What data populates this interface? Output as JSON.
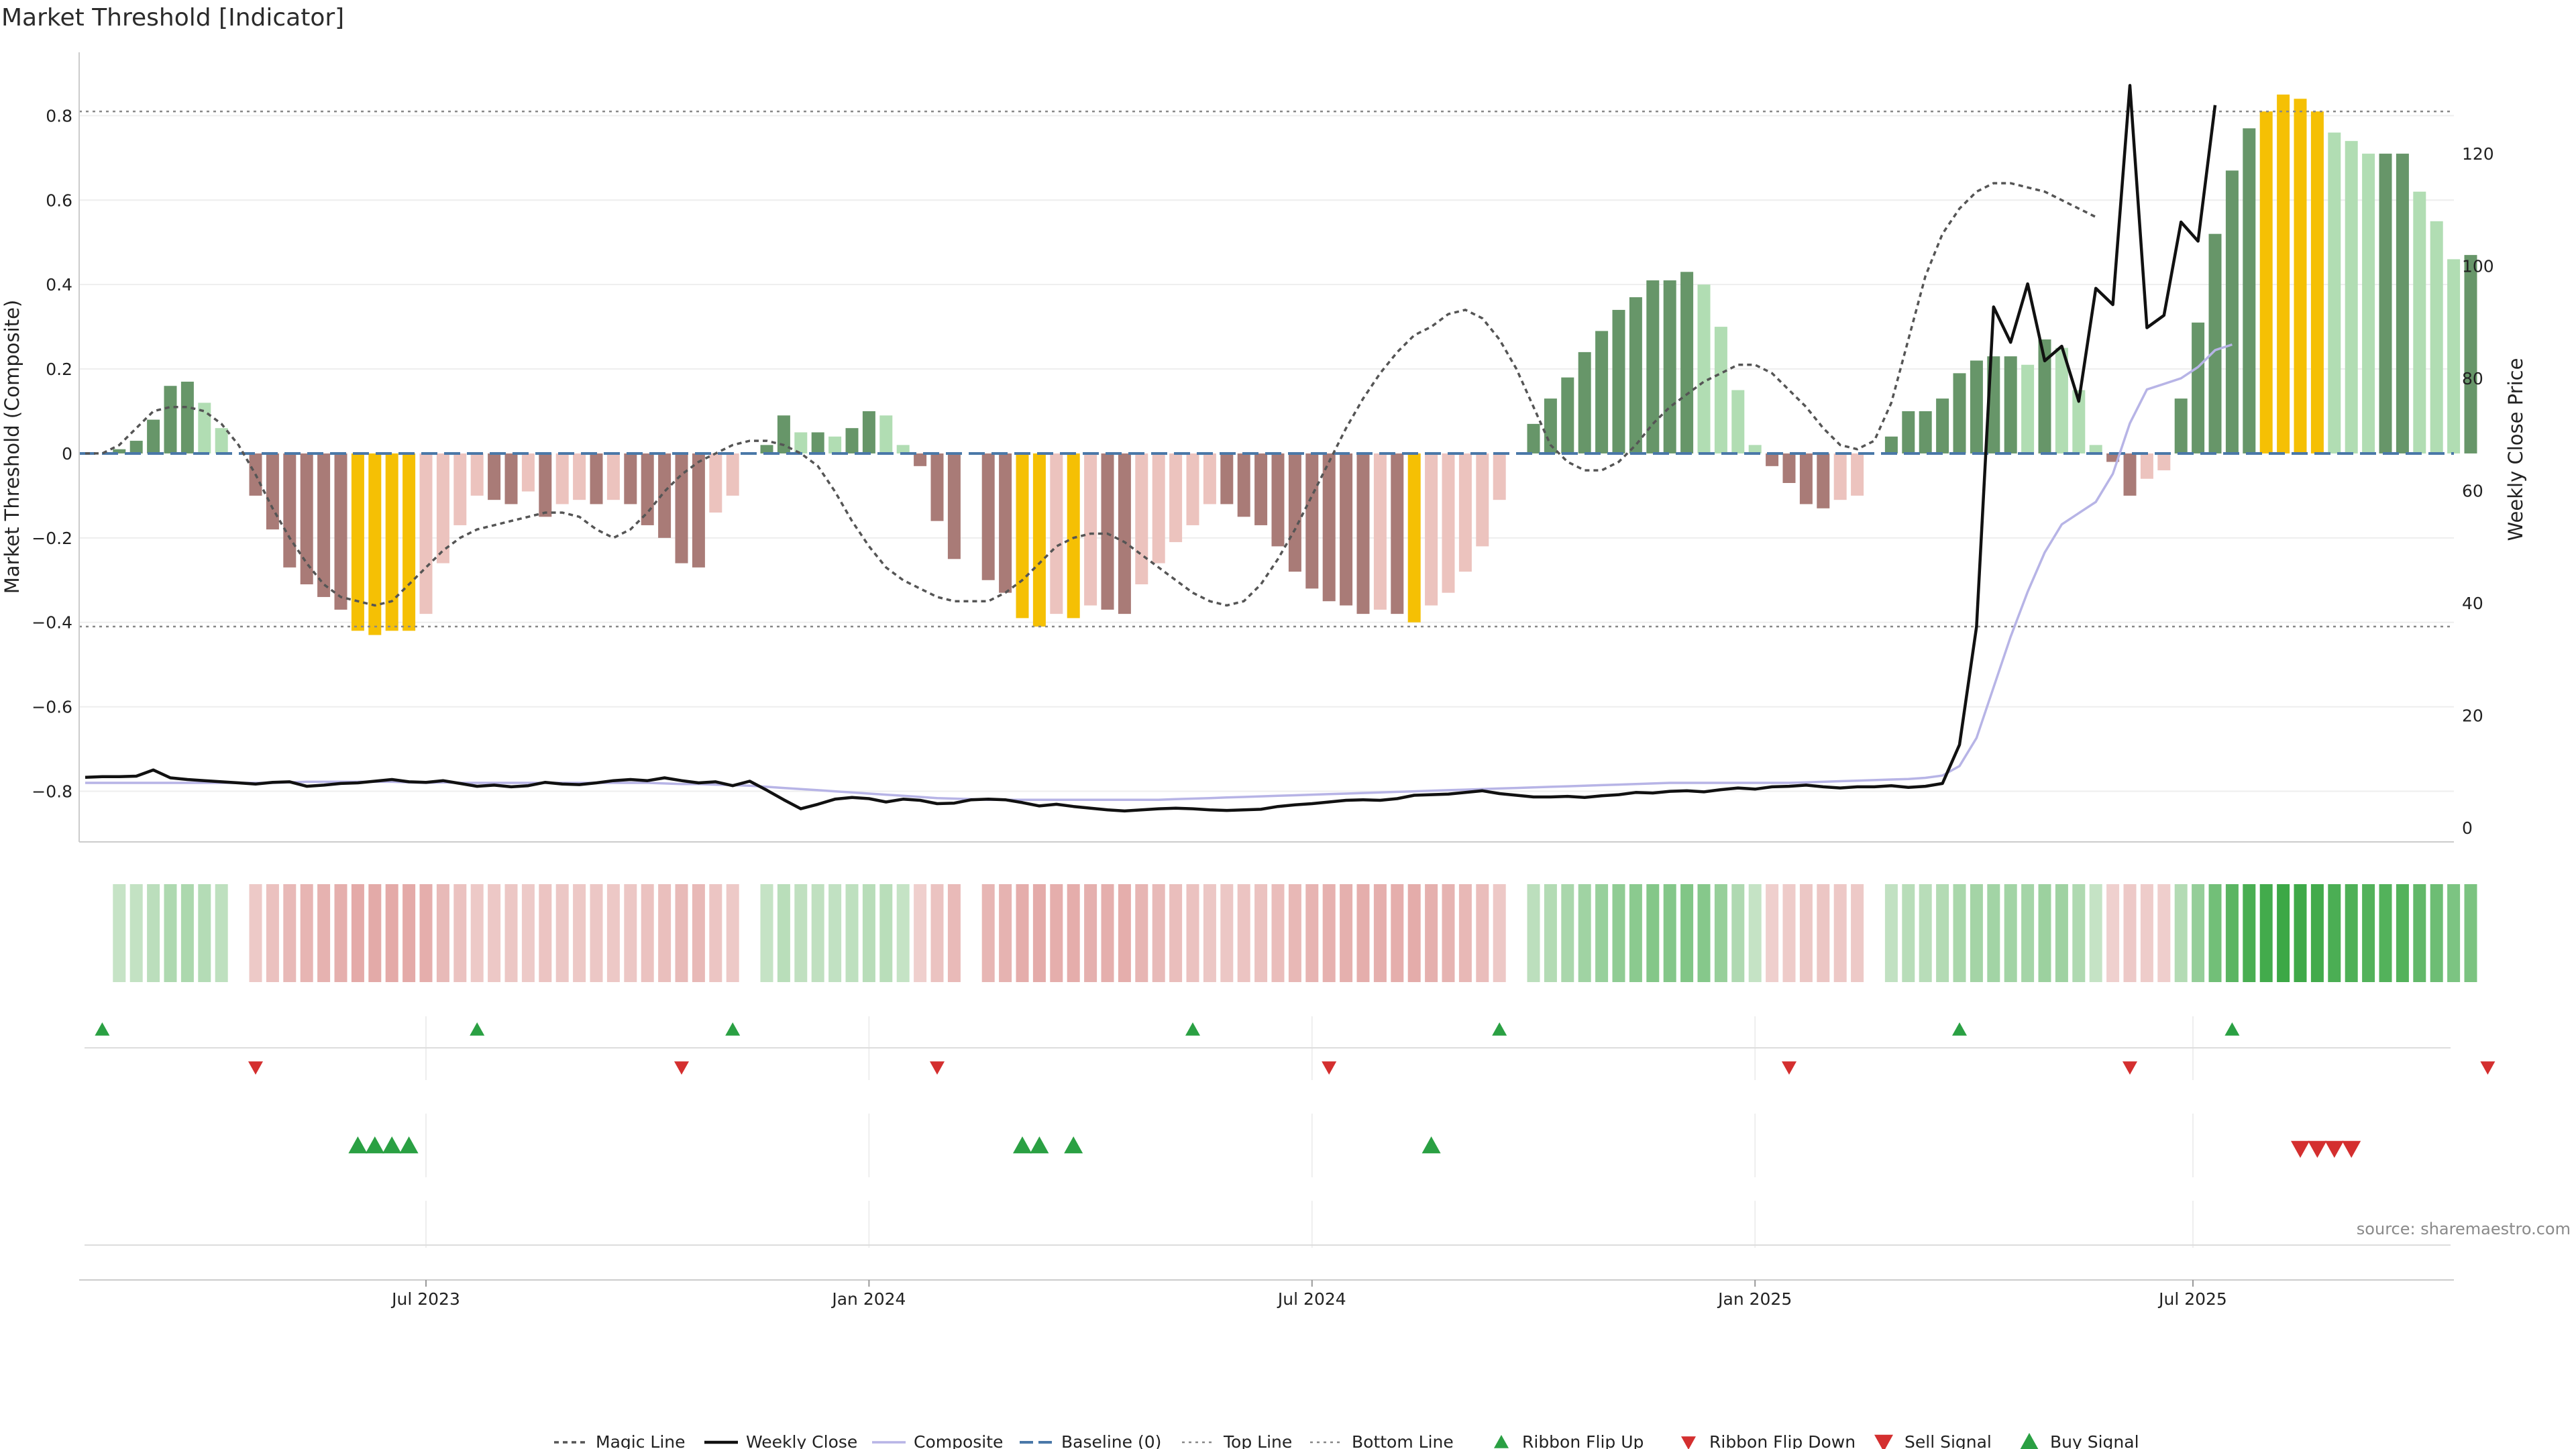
{
  "title": "Market Threshold [Indicator]",
  "source": "source: sharemaestro.com",
  "chart_data": {
    "type": "bar",
    "title": "Market Threshold [Indicator]",
    "ylabel": "Market Threshold (Composite)",
    "y2label": "Weekly Close Price",
    "ylim": [
      -0.92,
      0.95
    ],
    "y2lim": [
      -2.5,
      138
    ],
    "yticks": [
      -0.8,
      -0.6,
      -0.4,
      -0.2,
      0,
      0.2,
      0.4,
      0.6,
      0.8
    ],
    "ytick_labels": [
      "−0.8",
      "−0.6",
      "−0.4",
      "−0.2",
      "0",
      "0.2",
      "0.4",
      "0.6",
      "0.8"
    ],
    "y2ticks": [
      0,
      20,
      40,
      60,
      80,
      100,
      120
    ],
    "y2tick_labels": [
      "0",
      "20",
      "40",
      "60",
      "80",
      "100",
      "120"
    ],
    "xticks": [
      {
        "label": "Jul 2023",
        "week": 20
      },
      {
        "label": "Jan 2024",
        "week": 46
      },
      {
        "label": "Jul 2024",
        "week": 72
      },
      {
        "label": "Jan 2025",
        "week": 98
      },
      {
        "label": "Jul 2025",
        "week": 123.7
      }
    ],
    "top_line": 0.81,
    "bottom_line": -0.41,
    "baseline": 0,
    "composite": [
      0.0,
      0.0,
      0.01,
      0.03,
      0.08,
      0.16,
      0.17,
      0.12,
      0.06,
      0.0,
      -0.1,
      -0.18,
      -0.27,
      -0.31,
      -0.34,
      -0.37,
      -0.42,
      -0.43,
      -0.42,
      -0.42,
      -0.38,
      -0.26,
      -0.17,
      -0.1,
      -0.11,
      -0.12,
      -0.09,
      -0.15,
      -0.12,
      -0.11,
      -0.12,
      -0.11,
      -0.12,
      -0.17,
      -0.2,
      -0.26,
      -0.27,
      -0.14,
      -0.1,
      0.0,
      0.02,
      0.09,
      0.05,
      0.05,
      0.04,
      0.06,
      0.1,
      0.09,
      0.02,
      -0.03,
      -0.16,
      -0.25,
      0.0,
      -0.3,
      -0.33,
      -0.39,
      -0.41,
      -0.38,
      -0.39,
      -0.36,
      -0.37,
      -0.38,
      -0.31,
      -0.26,
      -0.21,
      -0.17,
      -0.12,
      -0.12,
      -0.15,
      -0.17,
      -0.22,
      -0.28,
      -0.32,
      -0.35,
      -0.36,
      -0.38,
      -0.37,
      -0.38,
      -0.4,
      -0.36,
      -0.33,
      -0.28,
      -0.22,
      -0.11,
      0.0,
      0.07,
      0.13,
      0.18,
      0.24,
      0.29,
      0.34,
      0.37,
      0.41,
      0.41,
      0.43,
      0.4,
      0.3,
      0.15,
      0.02,
      -0.03,
      -0.07,
      -0.12,
      -0.13,
      -0.11,
      -0.1,
      0.0,
      0.04,
      0.1,
      0.1,
      0.13,
      0.19,
      0.22,
      0.23,
      0.23,
      0.21,
      0.27,
      0.25,
      0.15,
      0.02,
      -0.02,
      -0.1,
      -0.06,
      -0.04,
      0.13,
      0.31,
      0.52,
      0.67,
      0.77,
      0.81,
      0.85,
      0.84,
      0.81,
      0.76,
      0.74,
      0.71,
      0.71,
      0.71,
      0.62,
      0.55,
      0.46,
      0.47
    ],
    "magic_line": [
      0.0,
      0.0,
      0.02,
      0.06,
      0.1,
      0.11,
      0.11,
      0.1,
      0.07,
      0.02,
      -0.05,
      -0.13,
      -0.2,
      -0.26,
      -0.31,
      -0.34,
      -0.35,
      -0.36,
      -0.35,
      -0.31,
      -0.27,
      -0.23,
      -0.2,
      -0.18,
      -0.17,
      -0.16,
      -0.15,
      -0.14,
      -0.14,
      -0.15,
      -0.18,
      -0.2,
      -0.18,
      -0.14,
      -0.09,
      -0.05,
      -0.02,
      0.0,
      0.02,
      0.03,
      0.03,
      0.02,
      0.0,
      -0.03,
      -0.09,
      -0.16,
      -0.22,
      -0.27,
      -0.3,
      -0.32,
      -0.34,
      -0.35,
      -0.35,
      -0.35,
      -0.33,
      -0.3,
      -0.26,
      -0.22,
      -0.2,
      -0.19,
      -0.19,
      -0.21,
      -0.24,
      -0.27,
      -0.3,
      -0.33,
      -0.35,
      -0.36,
      -0.35,
      -0.31,
      -0.25,
      -0.18,
      -0.1,
      -0.02,
      0.06,
      0.13,
      0.19,
      0.24,
      0.28,
      0.3,
      0.33,
      0.34,
      0.32,
      0.27,
      0.2,
      0.11,
      0.02,
      -0.02,
      -0.04,
      -0.04,
      -0.02,
      0.02,
      0.07,
      0.11,
      0.14,
      0.17,
      0.19,
      0.21,
      0.21,
      0.19,
      0.15,
      0.11,
      0.06,
      0.02,
      0.01,
      0.03,
      0.12,
      0.27,
      0.42,
      0.52,
      0.58,
      0.62,
      0.64,
      0.64,
      0.63,
      0.62,
      0.6,
      0.58,
      0.56
    ],
    "weekly_close": [
      9.0,
      9.1,
      9.1,
      9.2,
      10.3,
      8.9,
      8.6,
      8.4,
      8.2,
      8.0,
      7.8,
      8.1,
      8.2,
      7.4,
      7.6,
      7.9,
      8.0,
      8.3,
      8.6,
      8.2,
      8.1,
      8.4,
      7.9,
      7.4,
      7.6,
      7.3,
      7.5,
      8.1,
      7.8,
      7.7,
      8.0,
      8.4,
      8.6,
      8.4,
      8.9,
      8.4,
      8.0,
      8.2,
      7.5,
      8.3,
      6.7,
      5.0,
      3.4,
      4.2,
      5.1,
      5.4,
      5.2,
      4.6,
      5.1,
      4.9,
      4.3,
      4.4,
      5.0,
      5.1,
      5.0,
      4.5,
      3.9,
      4.2,
      3.8,
      3.5,
      3.2,
      3.0,
      3.2,
      3.4,
      3.5,
      3.4,
      3.2,
      3.1,
      3.2,
      3.3,
      3.8,
      4.1,
      4.3,
      4.6,
      4.9,
      5.0,
      4.9,
      5.2,
      5.8,
      5.9,
      6.0,
      6.3,
      6.6,
      6.1,
      5.8,
      5.5,
      5.5,
      5.6,
      5.4,
      5.7,
      5.9,
      6.3,
      6.2,
      6.5,
      6.6,
      6.4,
      6.8,
      7.1,
      6.9,
      7.3,
      7.4,
      7.6,
      7.3,
      7.1,
      7.3,
      7.3,
      7.5,
      7.2,
      7.4,
      7.9,
      14.8,
      35.8,
      92.7,
      86.4,
      96.8,
      83.1,
      85.7,
      75.9,
      96.0,
      93.1,
      132.1,
      89.0,
      91.2,
      107.8,
      104.4,
      128.6
    ],
    "composite_line": [
      8.0,
      8.0,
      8.0,
      8.0,
      8.0,
      8.0,
      8.0,
      8.0,
      8.0,
      8.0,
      8.0,
      8.0,
      8.1,
      8.2,
      8.2,
      8.2,
      8.2,
      8.2,
      8.2,
      8.1,
      8.0,
      8.1,
      8.0,
      8.0,
      8.0,
      8.0,
      8.0,
      8.0,
      8.0,
      8.0,
      8.0,
      8.0,
      8.0,
      8.0,
      7.9,
      7.8,
      7.8,
      7.7,
      7.6,
      7.5,
      7.3,
      7.1,
      6.9,
      6.7,
      6.5,
      6.3,
      6.1,
      5.9,
      5.7,
      5.5,
      5.3,
      5.2,
      5.1,
      5.0,
      5.0,
      5.0,
      5.0,
      5.0,
      5.0,
      5.0,
      5.0,
      5.0,
      5.0,
      5.0,
      5.1,
      5.2,
      5.3,
      5.4,
      5.5,
      5.6,
      5.7,
      5.8,
      5.9,
      6.0,
      6.1,
      6.2,
      6.3,
      6.4,
      6.5,
      6.6,
      6.7,
      6.8,
      6.9,
      7.0,
      7.1,
      7.2,
      7.3,
      7.4,
      7.5,
      7.6,
      7.7,
      7.8,
      7.9,
      8.0,
      8.0,
      8.0,
      8.0,
      8.0,
      8.0,
      8.0,
      8.0,
      8.1,
      8.2,
      8.3,
      8.4,
      8.5,
      8.6,
      8.7,
      8.9,
      9.3,
      11.0,
      16.0,
      25.0,
      34.0,
      42.0,
      49.0,
      54.0,
      56.0,
      58.0,
      63.0,
      72.0,
      78.0,
      79.0,
      80.0,
      82.0,
      85.0,
      86.0
    ],
    "ribbon_flip_up_weeks": [
      1,
      23,
      38,
      65,
      83,
      110,
      126
    ],
    "ribbon_flip_down_weeks": [
      10,
      35,
      50,
      73,
      100,
      120,
      141
    ],
    "buy_signal_weeks": [
      16,
      17,
      18,
      19,
      55,
      56,
      58,
      79
    ],
    "sell_signal_weeks": [
      130,
      131,
      132,
      133
    ],
    "legend": [
      "Magic Line",
      "Weekly Close",
      "Composite",
      "Baseline (0)",
      "Top Line",
      "Bottom Line",
      "Ribbon Flip Up",
      "Ribbon Flip Down",
      "Sell Signal",
      "Buy Signal"
    ],
    "colors": {
      "pos_strong": "#679669",
      "pos_weak": "#b1ddb3",
      "neg_strong": "#a97b77",
      "neg_weak": "#ecc3be",
      "extreme": "#f5c004",
      "magic": "#555555",
      "close": "#111111",
      "composite": "#b7b4e6",
      "baseline": "#4a78a8",
      "threshold": "#888888",
      "up": "#2aa043",
      "down": "#d42f2f"
    }
  }
}
